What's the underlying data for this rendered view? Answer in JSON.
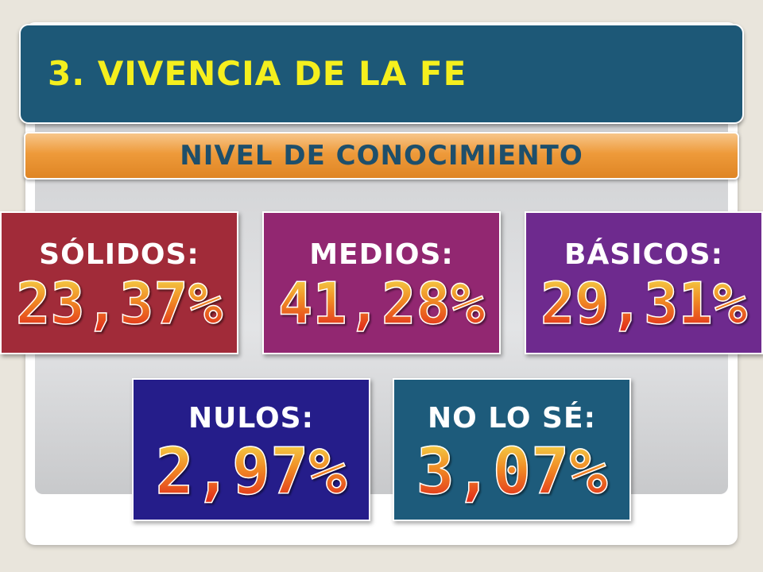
{
  "header": {
    "title": "3. VIVENCIA DE LA FE",
    "subtitle": "NIVEL DE CONOCIMIENTO"
  },
  "stats": [
    {
      "label": "SÓLIDOS:",
      "value": "23,37%",
      "color": "#a12b39"
    },
    {
      "label": "MEDIOS:",
      "value": "41,28%",
      "color": "#922771"
    },
    {
      "label": "BÁSICOS:",
      "value": "29,31%",
      "color": "#6e2a8e"
    },
    {
      "label": "NULOS:",
      "value": "2,97%",
      "color": "#251d8a"
    },
    {
      "label": "NO LO SÉ:",
      "value": "3,07%",
      "color": "#1d5b7b"
    }
  ],
  "colors": {
    "title_bar": "#1d5877",
    "title_text": "#f5ef1e",
    "subtitle_bar": "#ee9a3a",
    "subtitle_text": "#1e4f6b"
  }
}
